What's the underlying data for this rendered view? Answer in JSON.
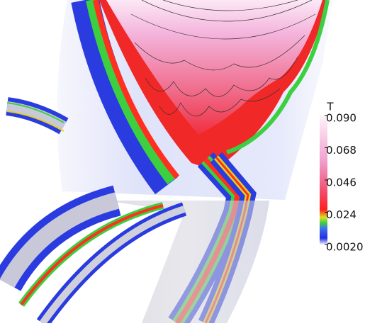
{
  "colorbar": {
    "title": "T",
    "range": [
      0.002,
      0.09
    ],
    "ticks": [
      {
        "value": 0.09,
        "label": "0.090"
      },
      0.068,
      0.046,
      0.024,
      {
        "value": 0.002,
        "label": "0.0020"
      }
    ]
  }
}
